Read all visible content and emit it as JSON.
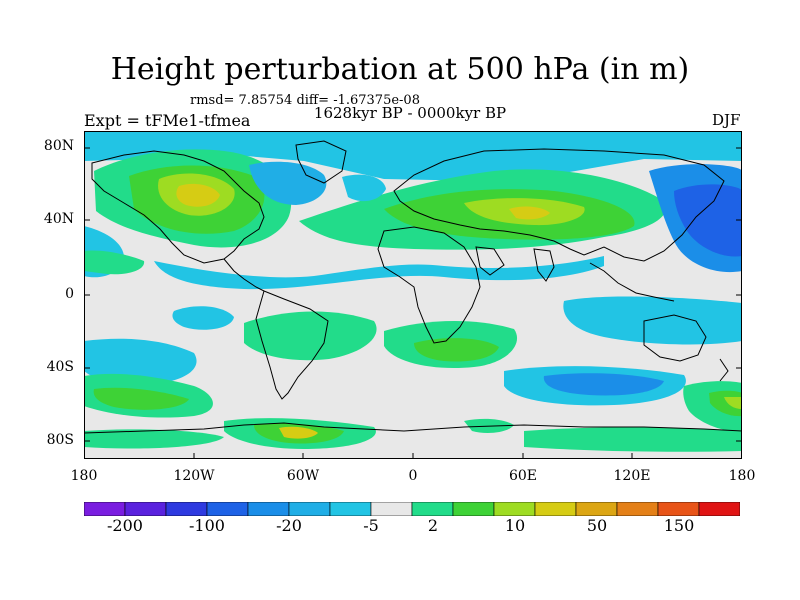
{
  "title": "Height perturbation at 500 hPa (in m)",
  "stats": "rmsd= 7.85754 diff= -1.67375e-08",
  "period": "1628kyr BP - 0000kyr BP",
  "experiment": "Expt = tFMe1-tfmea",
  "season": "DJF",
  "lat_labels": [
    "80N",
    "40N",
    "0",
    "40S",
    "80S"
  ],
  "lon_labels": [
    "180",
    "120W",
    "60W",
    "0",
    "60E",
    "120E",
    "180"
  ],
  "colorbar": {
    "colors": [
      "#7a1de0",
      "#5a22de",
      "#2e3ae0",
      "#1e62e6",
      "#1b8ee8",
      "#20aee6",
      "#22c4e4",
      "#e8e8e8",
      "#22dc8a",
      "#3ed236",
      "#9edc22",
      "#d6cc14",
      "#dca614",
      "#e48018",
      "#e85418",
      "#e01414"
    ],
    "labels": [
      "-200",
      "-100",
      "-20",
      "-5",
      "2",
      "10",
      "50",
      "150"
    ]
  },
  "palette": {
    "ocean_neutral": "#e8e8e8",
    "coastline": "#000000"
  }
}
